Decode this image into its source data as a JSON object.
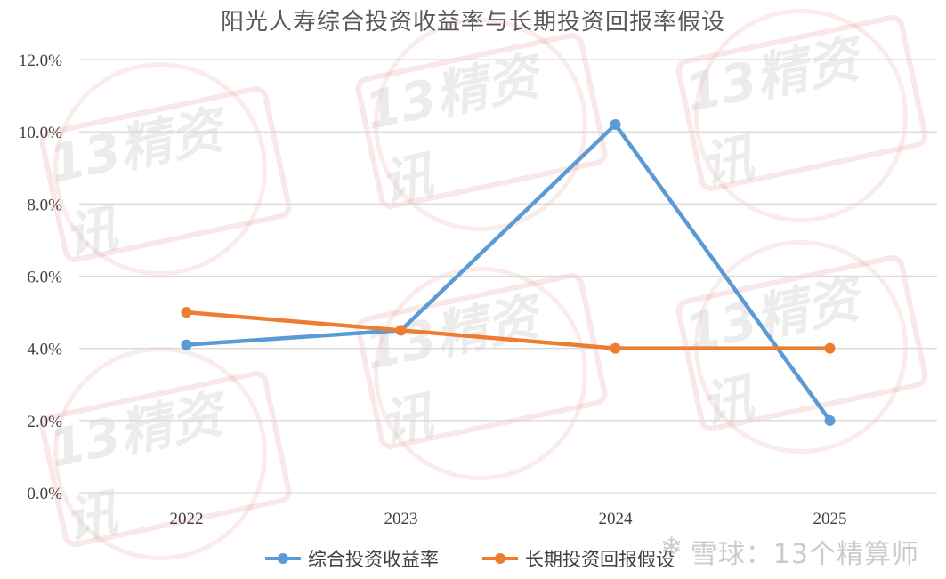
{
  "chart_data": {
    "type": "line",
    "title": "阳光人寿综合投资收益率与长期投资回报率假设",
    "categories": [
      "2022",
      "2023",
      "2024",
      "2025"
    ],
    "series": [
      {
        "name": "综合投资收益率",
        "color": "#5b9bd5",
        "values": [
          4.1,
          4.5,
          10.2,
          2.0
        ]
      },
      {
        "name": "长期投资回报假设",
        "color": "#ed7d31",
        "values": [
          5.0,
          4.5,
          4.0,
          4.0
        ]
      }
    ],
    "ylim": [
      0,
      12
    ],
    "yticks": [
      "0.0%",
      "2.0%",
      "4.0%",
      "6.0%",
      "8.0%",
      "10.0%",
      "12.0%"
    ],
    "grid": true,
    "legend_position": "bottom"
  },
  "watermark": {
    "stamp_text": "13精资讯",
    "source_label": "雪球：13个精算师",
    "source_icon": "snowball-icon"
  }
}
